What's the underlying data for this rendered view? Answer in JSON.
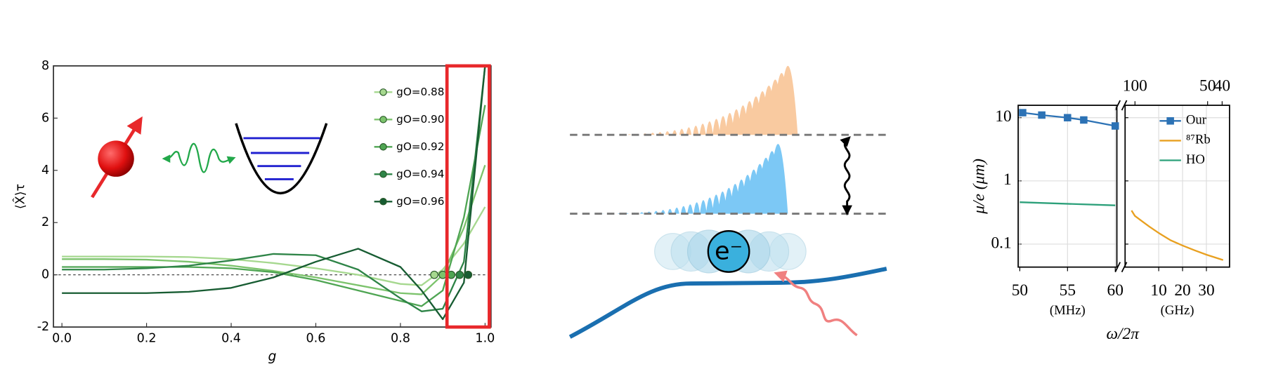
{
  "chart_data": [
    {
      "type": "line",
      "xlabel": "g",
      "ylabel": "⟨X̂⟩τ",
      "x": [
        0,
        0.1,
        0.2,
        0.3,
        0.4,
        0.5,
        0.6,
        0.7,
        0.8,
        0.85,
        0.9,
        0.95,
        1.0
      ],
      "xlim": [
        -0.02,
        1.014
      ],
      "xticks": [
        {
          "value": 0,
          "label": "0.0"
        },
        0.2,
        0.4,
        0.6,
        0.8,
        {
          "value": 1,
          "label": "1.0"
        }
      ],
      "ylim": [
        -2,
        8
      ],
      "yticks": [
        -2,
        0,
        2,
        4,
        6,
        8
      ],
      "hline": 0,
      "highlight_x": [
        0.91,
        1.01
      ],
      "highlight_color": "#e8282b",
      "legend": "upper right",
      "series": [
        {
          "name": "gO=0.88",
          "color": "#a6d88f",
          "marker": [
            0.88,
            0
          ],
          "values": [
            0.7,
            0.7,
            0.7,
            0.68,
            0.6,
            0.45,
            0.25,
            0.0,
            -0.35,
            -0.4,
            0.2,
            1.2,
            2.6
          ]
        },
        {
          "name": "gO=0.90",
          "color": "#7cc36c",
          "marker": [
            0.9,
            0
          ],
          "values": [
            0.6,
            0.6,
            0.58,
            0.5,
            0.35,
            0.15,
            -0.1,
            -0.4,
            -0.7,
            -0.75,
            0.0,
            1.8,
            4.2
          ]
        },
        {
          "name": "gO=0.92",
          "color": "#4fa553",
          "marker": [
            0.92,
            0
          ],
          "values": [
            0.3,
            0.3,
            0.3,
            0.3,
            0.25,
            0.1,
            -0.2,
            -0.6,
            -1.0,
            -1.2,
            -0.6,
            2.2,
            6.5
          ]
        },
        {
          "name": "gO=0.94",
          "color": "#2e8447",
          "marker": [
            0.94,
            0
          ],
          "values": [
            0.2,
            0.2,
            0.25,
            0.35,
            0.55,
            0.8,
            0.75,
            0.2,
            -0.9,
            -1.4,
            -1.3,
            0.5,
            8
          ]
        },
        {
          "name": "gO=0.96",
          "color": "#175c32",
          "marker": [
            0.96,
            0
          ],
          "values": [
            -0.7,
            -0.7,
            -0.7,
            -0.65,
            -0.5,
            -0.1,
            0.5,
            1.0,
            0.3,
            -0.6,
            -1.7,
            -0.3,
            8
          ]
        }
      ]
    },
    {
      "type": "line",
      "log_y": true,
      "grid": true,
      "ylabel": "μ/e (μm)",
      "xlabel": "ω/2π",
      "ylim": [
        0.0433,
        15.7
      ],
      "yticks": [
        0.1,
        1,
        10
      ],
      "legend": "upper right",
      "panels": [
        {
          "xlim": [
            49.83,
            60.17
          ],
          "xticks": [
            50,
            55,
            60
          ],
          "xlabel": "(MHz)"
        },
        {
          "xlim": [
            -4.1,
            39.7
          ],
          "xticks": [
            10,
            20,
            30
          ],
          "xlabel": "(GHz)",
          "x2lim": [
            106.8,
            34.9
          ],
          "x2ticks": [
            100,
            50,
            40
          ]
        }
      ],
      "series": [
        {
          "name": "Our",
          "color": "#2c72b5",
          "panel": 0,
          "marker": "square",
          "x": [
            50.3,
            52.3,
            55,
            56.7,
            60
          ],
          "values": [
            12,
            11,
            10,
            9.2,
            7.4
          ]
        },
        {
          "name": "⁸⁷Rb",
          "color": "#e8a020",
          "panel": 1,
          "x": [
            -1.4,
            0,
            3,
            6,
            10,
            15,
            20,
            25,
            30,
            37
          ],
          "values": [
            0.34,
            0.28,
            0.23,
            0.19,
            0.15,
            0.115,
            0.095,
            0.08,
            0.068,
            0.056
          ]
        },
        {
          "name": "HO",
          "color": "#2ca07a",
          "panel": 0,
          "x": [
            50,
            60
          ],
          "values": [
            0.46,
            0.41
          ]
        }
      ]
    }
  ],
  "diagram": {
    "electron_label": "e⁻"
  }
}
